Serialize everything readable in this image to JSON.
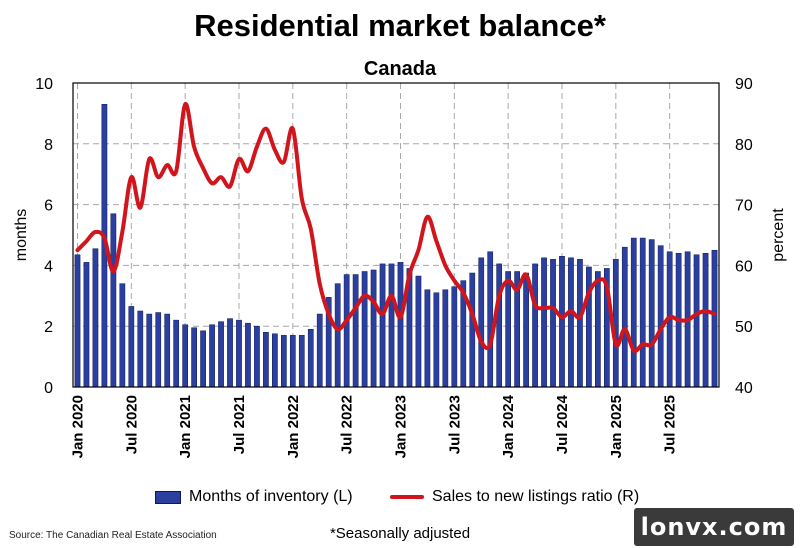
{
  "title": "Residential market balance*",
  "subtitle": "Canada",
  "note": "*Seasonally adjusted",
  "source": "Source: The Canadian Real Estate Association",
  "watermark": "lonvx.com",
  "colors": {
    "bars": "#2a3f9e",
    "line": "#d0161c",
    "grid": "#a8a8a8"
  },
  "chart_data": {
    "type": "bar",
    "title": "Residential market balance*",
    "subtitle": "Canada",
    "x_labels": [
      "Jan 2020",
      "Jul 2020",
      "Jan 2021",
      "Jul 2021",
      "Jan 2022",
      "Jul 2022",
      "Jan 2023",
      "Jul 2023",
      "Jan 2024",
      "Jul 2024",
      "Jan 2025",
      "Jul 2025"
    ],
    "y_left": {
      "label": "months",
      "ylim": [
        0,
        10
      ],
      "ticks": [
        0,
        2,
        4,
        6,
        8,
        10
      ]
    },
    "y_right": {
      "label": "percent",
      "ylim": [
        40,
        90
      ],
      "ticks": [
        40,
        50,
        60,
        70,
        80,
        90
      ]
    },
    "grid": true,
    "legend_position": "bottom",
    "series": [
      {
        "name": "Months of inventory (L)",
        "type": "bar",
        "axis": "left",
        "start": "Jan 2020",
        "values": [
          4.35,
          4.1,
          4.55,
          9.3,
          5.7,
          3.4,
          2.65,
          2.5,
          2.4,
          2.45,
          2.4,
          2.2,
          2.05,
          1.95,
          1.85,
          2.05,
          2.15,
          2.25,
          2.2,
          2.1,
          2.0,
          1.8,
          1.75,
          1.7,
          1.7,
          1.7,
          1.9,
          2.4,
          2.95,
          3.4,
          3.7,
          3.7,
          3.8,
          3.85,
          4.05,
          4.05,
          4.1,
          3.9,
          3.65,
          3.2,
          3.1,
          3.2,
          3.3,
          3.5,
          3.75,
          4.25,
          4.45,
          4.05,
          3.8,
          3.8,
          3.75,
          4.05,
          4.25,
          4.2,
          4.3,
          4.25,
          4.2,
          3.95,
          3.8,
          3.9,
          4.2,
          4.6,
          4.9,
          4.9,
          4.85,
          4.65,
          4.45,
          4.4,
          4.45,
          4.35,
          4.4,
          4.5
        ]
      },
      {
        "name": "Sales to new listings ratio (R)",
        "type": "line",
        "axis": "right",
        "start": "Jan 2020",
        "values": [
          62.5,
          64.0,
          65.5,
          64.5,
          59.0,
          65.5,
          74.5,
          69.5,
          77.5,
          74.5,
          76.5,
          75.5,
          86.5,
          79.5,
          76.0,
          73.5,
          74.5,
          73.0,
          77.5,
          75.5,
          79.5,
          82.5,
          79.0,
          77.0,
          82.5,
          71.0,
          66.0,
          57.0,
          52.0,
          49.5,
          51.0,
          53.0,
          55.0,
          54.0,
          52.0,
          55.0,
          51.5,
          58.5,
          62.5,
          68.0,
          64.0,
          60.0,
          57.5,
          55.5,
          52.0,
          47.5,
          47.0,
          55.0,
          57.5,
          56.0,
          58.5,
          53.5,
          53.0,
          53.0,
          51.5,
          52.5,
          51.5,
          55.5,
          57.5,
          56.5,
          47.0,
          49.5,
          46.0,
          47.0,
          47.0,
          49.5,
          51.5,
          51.0,
          51.0,
          52.0,
          52.5,
          52.0
        ]
      }
    ]
  },
  "legend": {
    "bars_label": "Months of inventory (L)",
    "line_label": "Sales to new listings ratio (R)"
  }
}
